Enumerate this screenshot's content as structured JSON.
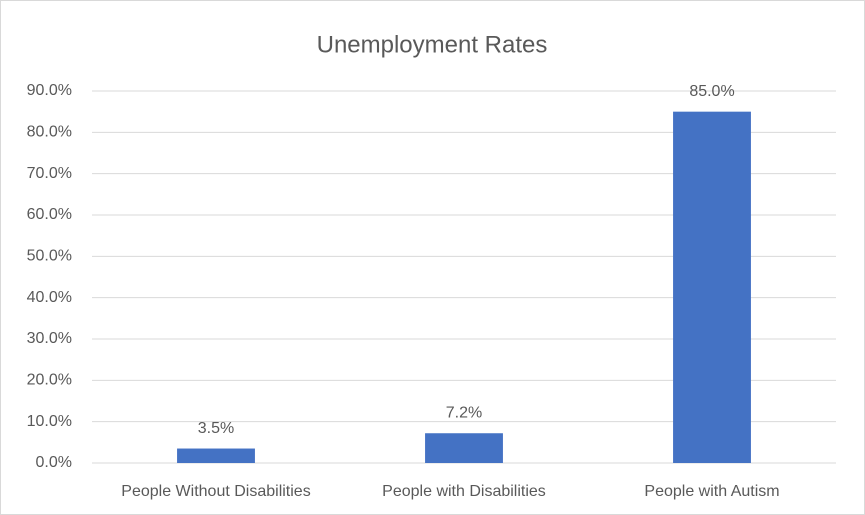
{
  "chart_data": {
    "type": "bar",
    "title": "Unemployment Rates",
    "categories": [
      "People Without Disabilities",
      "People with Disabilities",
      "People with Autism"
    ],
    "values": [
      3.5,
      7.2,
      85.0
    ],
    "value_labels": [
      "3.5%",
      "7.2%",
      "85.0%"
    ],
    "color": "#4472c4",
    "ylim": [
      0,
      90
    ],
    "yticks": [
      {
        "value": 0,
        "label": "0.0%"
      },
      {
        "value": 10,
        "label": "10.0%"
      },
      {
        "value": 20,
        "label": "20.0%"
      },
      {
        "value": 30,
        "label": "30.0%"
      },
      {
        "value": 40,
        "label": "40.0%"
      },
      {
        "value": 50,
        "label": "50.0%"
      },
      {
        "value": 60,
        "label": "60.0%"
      },
      {
        "value": 70,
        "label": "70.0%"
      },
      {
        "value": 80,
        "label": "80.0%"
      },
      {
        "value": 90,
        "label": "90.0%"
      }
    ],
    "grid": true
  }
}
